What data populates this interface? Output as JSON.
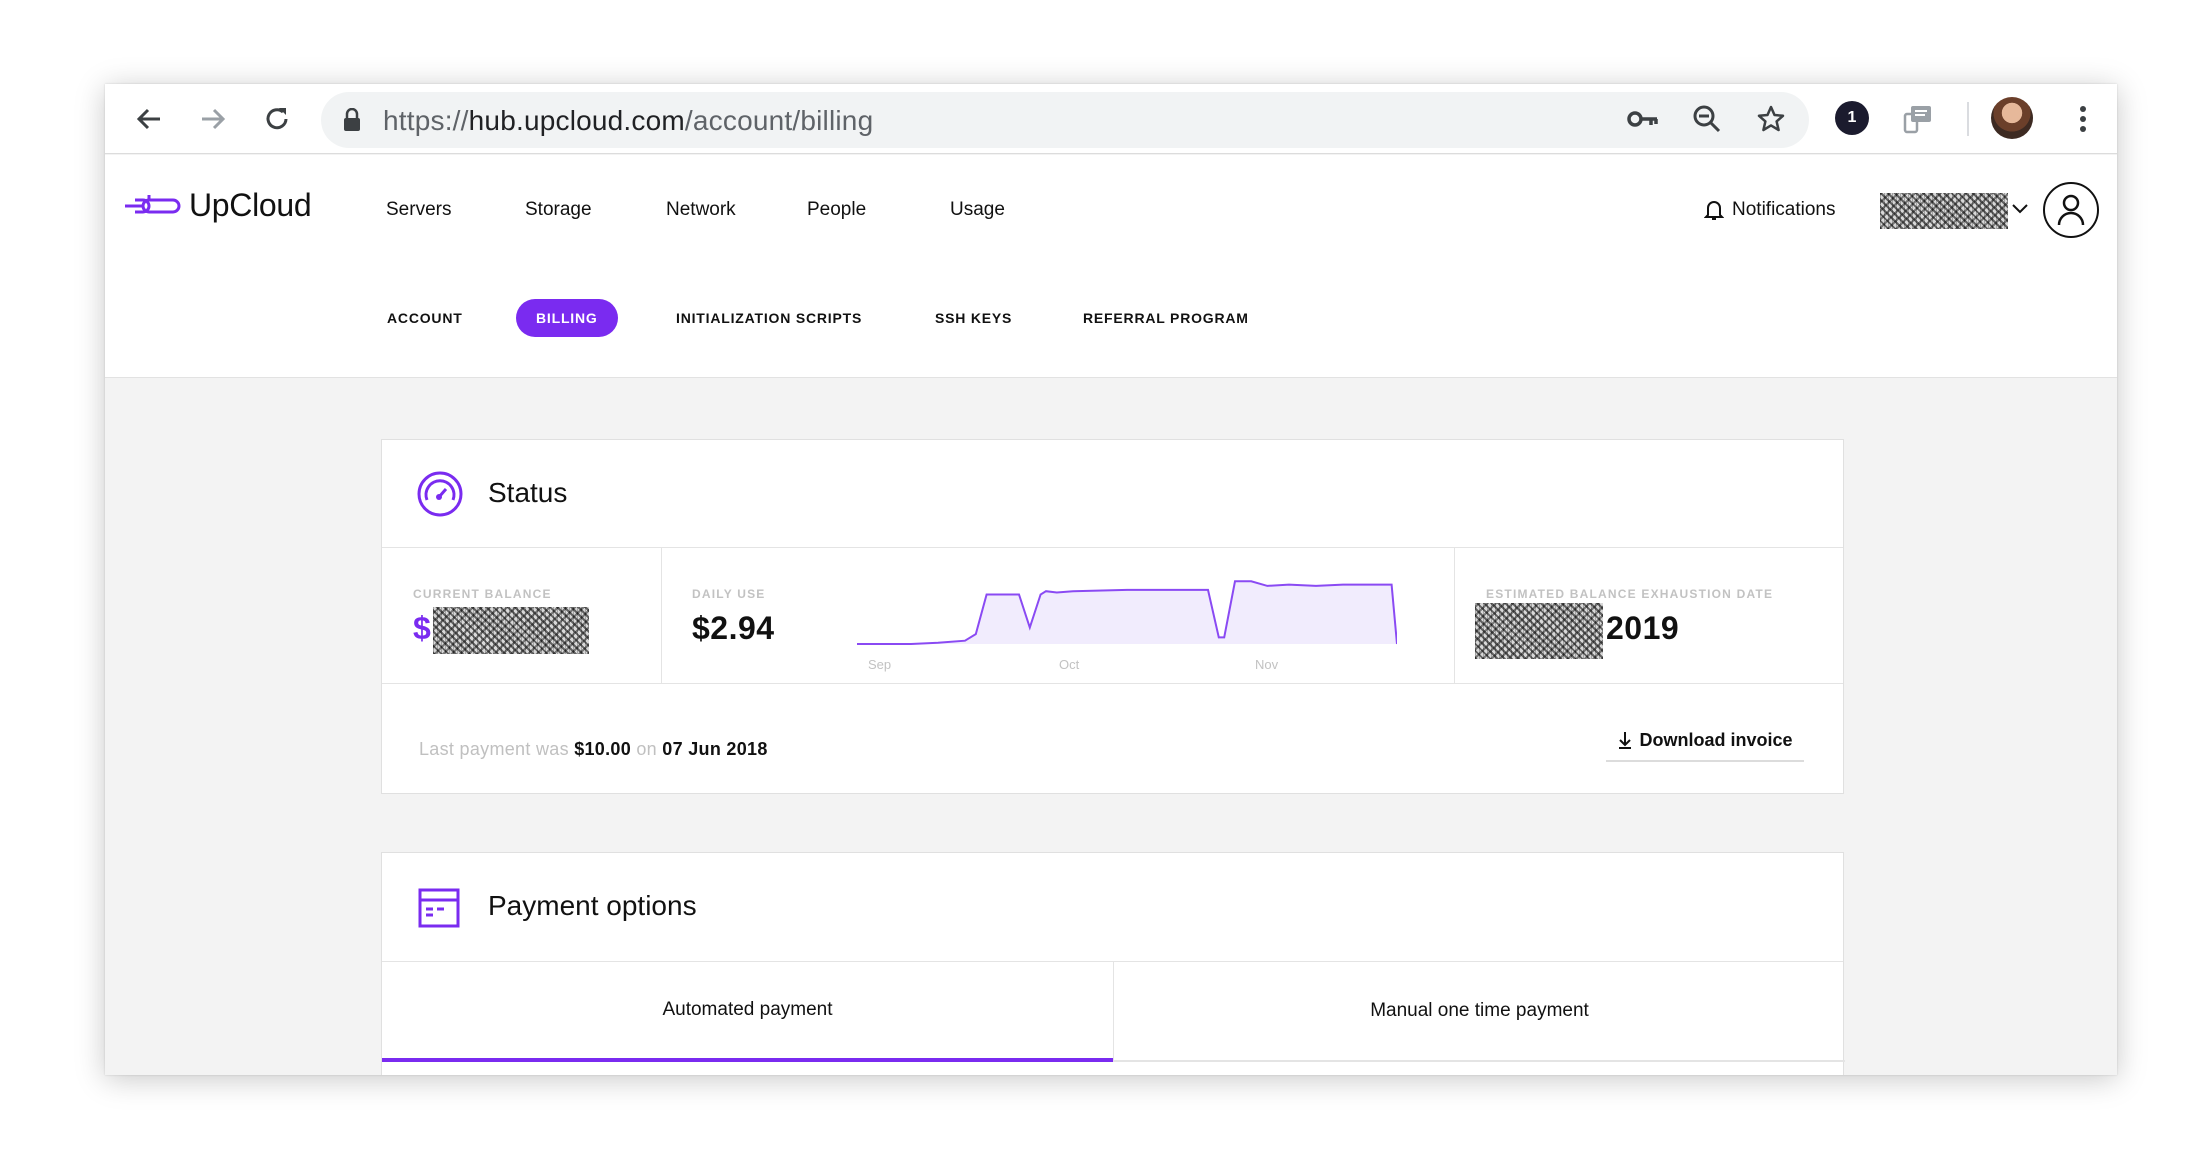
{
  "browser": {
    "url_scheme": "https://",
    "url_host": "hub.upcloud.com",
    "url_path": "/account/billing",
    "extension_badge": "1"
  },
  "app": {
    "logo_text": "UpCloud",
    "main_nav": [
      {
        "label": "Servers"
      },
      {
        "label": "Storage"
      },
      {
        "label": "Network"
      },
      {
        "label": "People"
      },
      {
        "label": "Usage"
      }
    ],
    "notifications_label": "Notifications",
    "sub_nav": [
      {
        "label": "ACCOUNT",
        "active": false
      },
      {
        "label": "BILLING",
        "active": true
      },
      {
        "label": "INITIALIZATION SCRIPTS",
        "active": false
      },
      {
        "label": "SSH KEYS",
        "active": false
      },
      {
        "label": "REFERRAL PROGRAM",
        "active": false
      }
    ],
    "accent_color": "#7a2bf0"
  },
  "status": {
    "title": "Status",
    "current_balance_label": "CURRENT BALANCE",
    "current_balance_currency": "$",
    "daily_use_label": "DAILY USE",
    "daily_use_value": "$2.94",
    "exhaustion_label": "ESTIMATED BALANCE EXHAUSTION DATE",
    "exhaustion_year": "2019",
    "last_payment_prefix": "Last payment was",
    "last_payment_amount": "$10.00",
    "last_payment_on": "on",
    "last_payment_date": "07 Jun 2018",
    "download_label": "Download invoice"
  },
  "chart_data": {
    "type": "area",
    "title": "Daily use",
    "x_ticks": [
      "Sep",
      "Oct",
      "Nov"
    ],
    "x": [
      0,
      0.05,
      0.1,
      0.15,
      0.2,
      0.22,
      0.24,
      0.3,
      0.32,
      0.34,
      0.35,
      0.37,
      0.4,
      0.5,
      0.6,
      0.65,
      0.67,
      0.68,
      0.7,
      0.73,
      0.76,
      0.8,
      0.85,
      0.9,
      0.95,
      0.99,
      1.0
    ],
    "y": [
      0.0,
      0.0,
      0.0,
      0.02,
      0.05,
      0.15,
      0.75,
      0.75,
      0.25,
      0.75,
      0.8,
      0.78,
      0.8,
      0.82,
      0.82,
      0.82,
      0.1,
      0.1,
      0.95,
      0.95,
      0.88,
      0.9,
      0.88,
      0.9,
      0.9,
      0.9,
      0.0
    ],
    "ylim": [
      0,
      1
    ]
  },
  "payment": {
    "title": "Payment options",
    "tabs": [
      {
        "label": "Automated payment",
        "active": true
      },
      {
        "label": "Manual one time payment",
        "active": false
      }
    ]
  }
}
